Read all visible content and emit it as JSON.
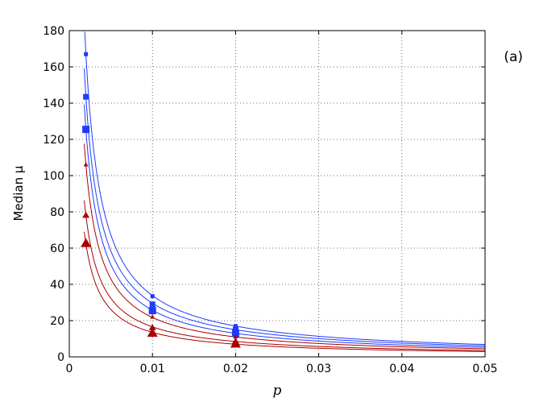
{
  "chart_data": {
    "type": "scatter",
    "title": "",
    "panel_label": "(a)",
    "xlabel": "p",
    "ylabel": "Median μ",
    "xlim": [
      0,
      0.05
    ],
    "ylim": [
      0,
      180
    ],
    "xticks": [
      0,
      0.01,
      0.02,
      0.03,
      0.04,
      0.05
    ],
    "xtick_labels": [
      "0",
      "0.01",
      "0.02",
      "0.03",
      "0.04",
      "0.05"
    ],
    "yticks": [
      0,
      20,
      40,
      60,
      80,
      100,
      120,
      140,
      160,
      180
    ],
    "ytick_labels": [
      "0",
      "20",
      "40",
      "60",
      "80",
      "100",
      "120",
      "140",
      "160",
      "180"
    ],
    "grid": true,
    "series": [
      {
        "marker": "square",
        "color": "#1f3bff",
        "marker_size": 5,
        "x": [
          0.002,
          0.01,
          0.02
        ],
        "y": [
          167,
          33.5,
          17
        ]
      },
      {
        "marker": "square",
        "color": "#1f3bff",
        "marker_size": 7,
        "x": [
          0.002,
          0.01,
          0.02
        ],
        "y": [
          143.5,
          29,
          15
        ]
      },
      {
        "marker": "square",
        "color": "#1f3bff",
        "marker_size": 9,
        "x": [
          0.002,
          0.01,
          0.02
        ],
        "y": [
          125.5,
          25.5,
          13
        ]
      },
      {
        "marker": "triangle",
        "color": "#aa0000",
        "marker_size": 6,
        "x": [
          0.002,
          0.01,
          0.02
        ],
        "y": [
          106,
          22,
          11
        ]
      },
      {
        "marker": "triangle",
        "color": "#aa0000",
        "marker_size": 9,
        "x": [
          0.002,
          0.01,
          0.02
        ],
        "y": [
          78,
          16,
          8.5
        ]
      },
      {
        "marker": "triangle",
        "color": "#aa0000",
        "marker_size": 13,
        "x": [
          0.002,
          0.01,
          0.02
        ],
        "y": [
          62.5,
          13,
          7
        ]
      }
    ]
  }
}
